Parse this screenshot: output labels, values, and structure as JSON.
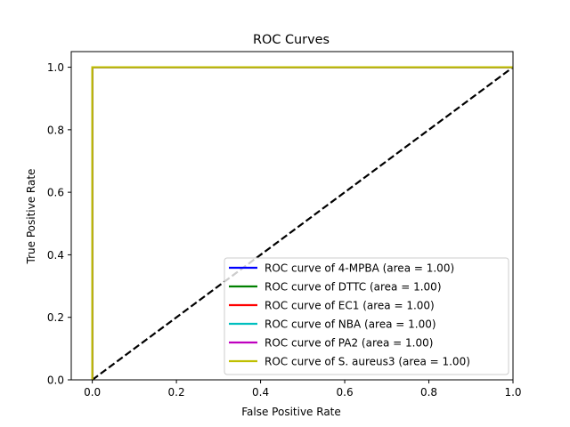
{
  "chart_data": {
    "type": "line",
    "title": "ROC Curves",
    "xlabel": "False Positive Rate",
    "ylabel": "True Positive Rate",
    "xlim": [
      -0.05,
      1.0
    ],
    "ylim": [
      0.0,
      1.05
    ],
    "x_ticks": [
      0.0,
      0.2,
      0.4,
      0.6,
      0.8,
      1.0
    ],
    "y_ticks": [
      0.0,
      0.2,
      0.4,
      0.6,
      0.8,
      1.0
    ],
    "x_tick_labels": [
      "0.0",
      "0.2",
      "0.4",
      "0.6",
      "0.8",
      "1.0"
    ],
    "y_tick_labels": [
      "0.0",
      "0.2",
      "0.4",
      "0.6",
      "0.8",
      "1.0"
    ],
    "grid": false,
    "legend_position": "lower-right",
    "diagonal": {
      "x": [
        0,
        1
      ],
      "y": [
        0,
        1
      ],
      "color": "#000000",
      "style": "dashed"
    },
    "series": [
      {
        "name": "ROC curve of 4-MPBA (area = 1.00)",
        "color": "#0000ff",
        "x": [
          0,
          0,
          1
        ],
        "y": [
          0,
          1,
          1
        ]
      },
      {
        "name": "ROC curve of DTTC (area = 1.00)",
        "color": "#008000",
        "x": [
          0,
          0,
          1
        ],
        "y": [
          0,
          1,
          1
        ]
      },
      {
        "name": "ROC curve of EC1 (area = 1.00)",
        "color": "#ff0000",
        "x": [
          0,
          0,
          1
        ],
        "y": [
          0,
          1,
          1
        ]
      },
      {
        "name": "ROC curve of NBA (area = 1.00)",
        "color": "#00bfbf",
        "x": [
          0,
          0,
          1
        ],
        "y": [
          0,
          1,
          1
        ]
      },
      {
        "name": "ROC curve of PA2 (area = 1.00)",
        "color": "#bf00bf",
        "x": [
          0,
          0,
          1
        ],
        "y": [
          0,
          1,
          1
        ]
      },
      {
        "name": "ROC curve of S. aureus3 (area = 1.00)",
        "color": "#bfbf00",
        "x": [
          0,
          0,
          1
        ],
        "y": [
          0,
          1,
          1
        ]
      }
    ]
  }
}
